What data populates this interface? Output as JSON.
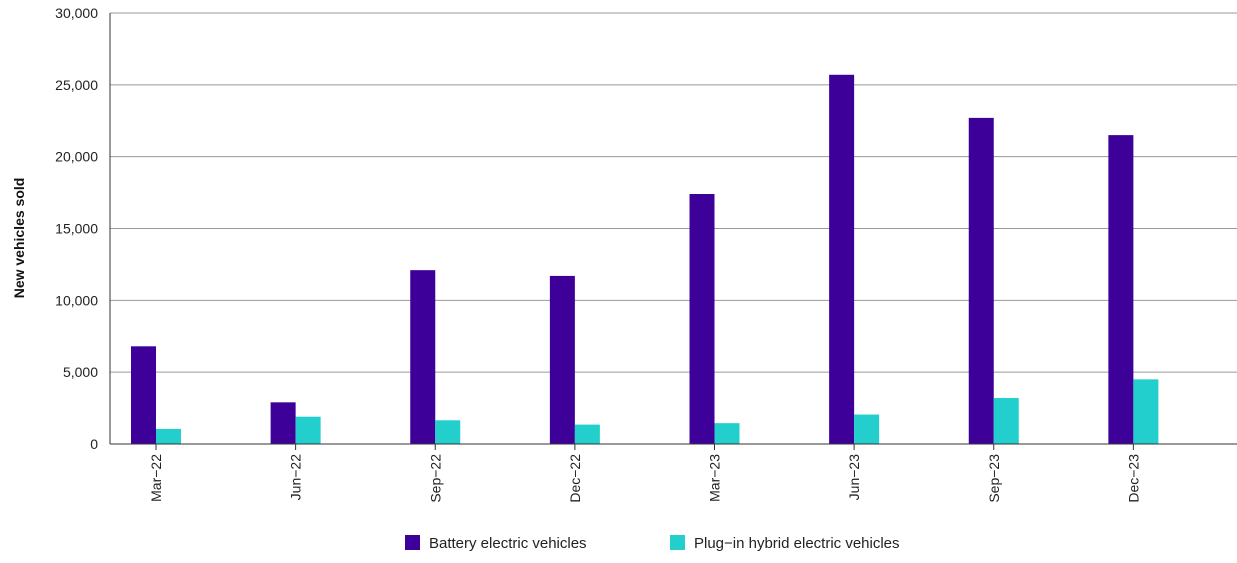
{
  "chart_data": {
    "type": "bar",
    "ylabel": "New vehicles sold",
    "xlabel": "",
    "categories": [
      "Mar−22",
      "Jun−22",
      "Sep−22",
      "Dec−22",
      "Mar−23",
      "Jun−23",
      "Sep−23",
      "Dec−23"
    ],
    "series": [
      {
        "name": "Battery electric vehicles",
        "color": "#3d0099",
        "values": [
          6800,
          2900,
          12100,
          11700,
          17400,
          25700,
          22700,
          21500
        ]
      },
      {
        "name": "Plug−in hybrid electric vehicles",
        "color": "#22cfcc",
        "values": [
          1050,
          1900,
          1650,
          1350,
          1450,
          2050,
          3200,
          4500
        ]
      }
    ],
    "ylim": [
      0,
      30000
    ],
    "yticks": [
      "0",
      "5,000",
      "10,000",
      "15,000",
      "20,000",
      "25,000",
      "30,000"
    ],
    "ytick_values": [
      0,
      5000,
      10000,
      15000,
      20000,
      25000,
      30000
    ],
    "grid": true,
    "legend_position": "bottom-center"
  }
}
